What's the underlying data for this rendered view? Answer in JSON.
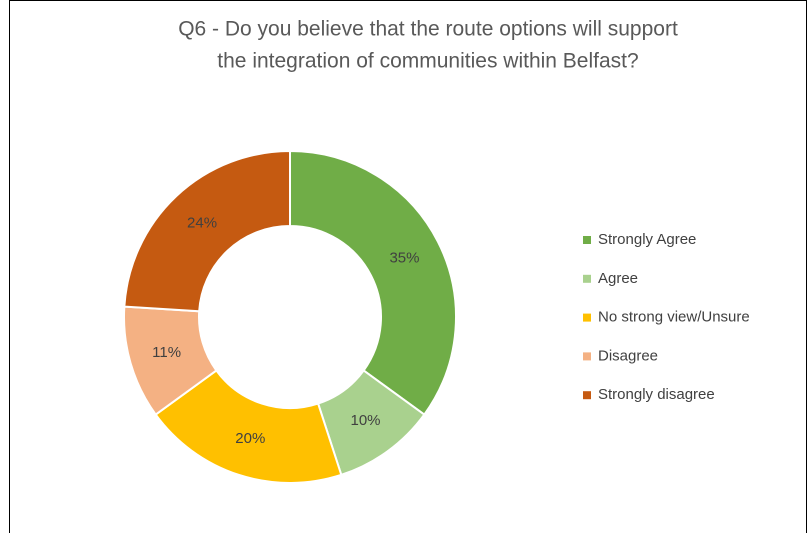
{
  "chart_data": {
    "type": "donut",
    "title": [
      "Q6 - Do you believe that the route options will support",
      "the integration of communities within Belfast?"
    ],
    "categories": [
      "Strongly Agree",
      "Agree",
      "No strong view/Unsure",
      "Disagree",
      "Strongly disagree"
    ],
    "values": [
      35,
      10,
      20,
      11,
      24
    ],
    "value_labels": [
      "35%",
      "10%",
      "20%",
      "11%",
      "24%"
    ],
    "colors": [
      "#70ad47",
      "#a9d18e",
      "#ffc000",
      "#f4b183",
      "#c55a11"
    ],
    "legend": "right"
  }
}
